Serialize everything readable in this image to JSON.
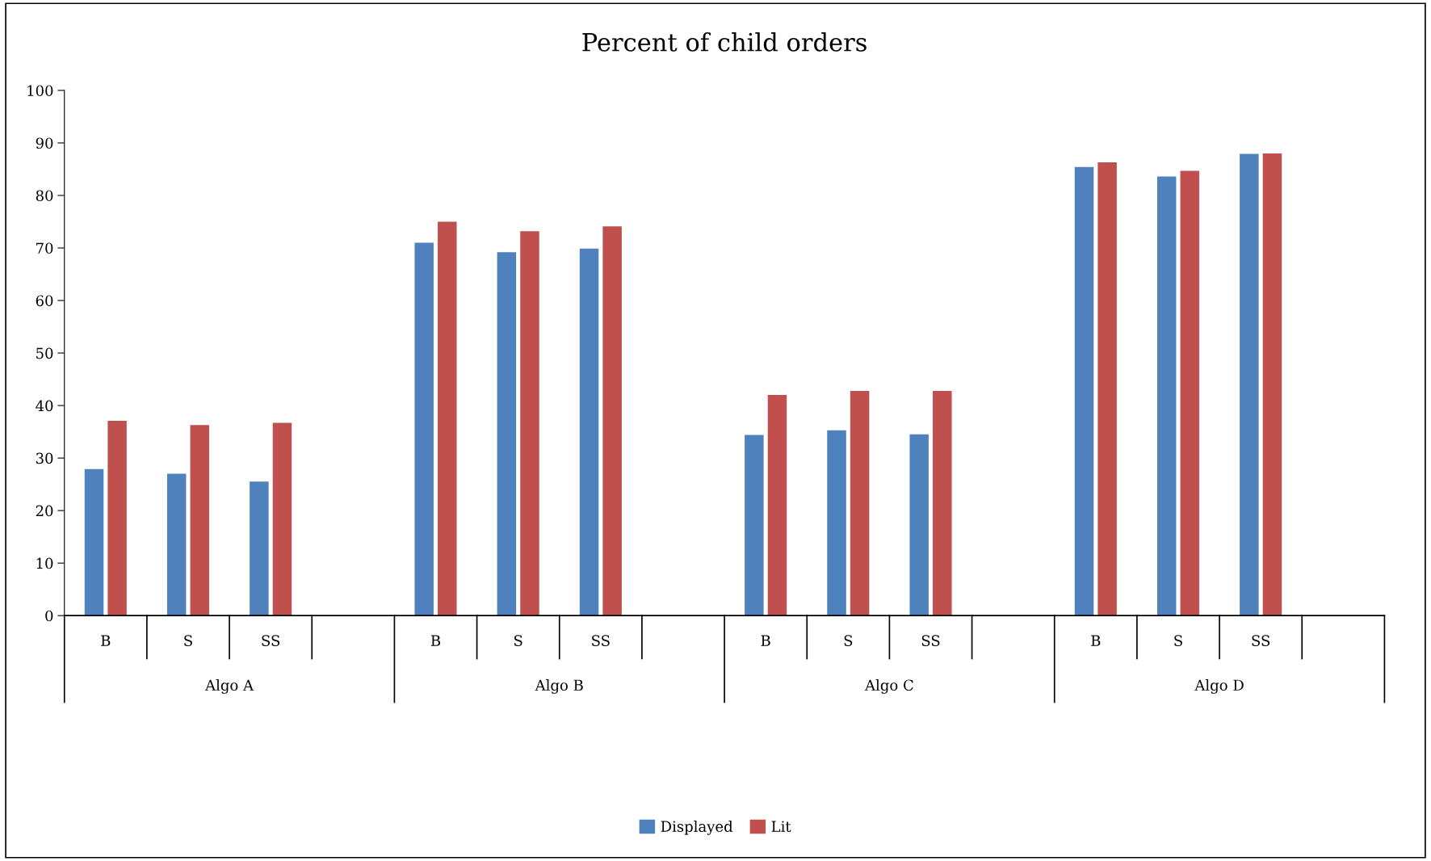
{
  "chart_data": {
    "type": "bar",
    "title": "Percent of child orders",
    "categories": [
      "B",
      "S",
      "SS",
      null,
      "B",
      "S",
      "SS",
      null,
      "B",
      "S",
      "SS",
      null,
      "B",
      "S",
      "SS",
      null
    ],
    "series": [
      {
        "name": "Displayed",
        "color": "#4f81bd",
        "values": [
          27.9,
          27.0,
          25.5,
          null,
          71.0,
          69.2,
          69.9,
          null,
          34.4,
          35.3,
          34.5,
          null,
          85.4,
          83.6,
          87.9,
          null
        ]
      },
      {
        "name": "Lit",
        "color": "#c0504d",
        "values": [
          37.1,
          36.3,
          36.7,
          null,
          75.0,
          73.2,
          74.1,
          null,
          42.0,
          42.8,
          42.8,
          null,
          86.3,
          84.7,
          88.0,
          null
        ]
      }
    ],
    "annotations": [
      "Algo A",
      "Algo B",
      "Algo C",
      "Algo D"
    ],
    "ylim": [
      0,
      100
    ],
    "yticks": [
      0,
      10,
      20,
      30,
      40,
      50,
      60,
      70,
      80,
      90,
      100
    ],
    "grid": false,
    "legend": "bottom"
  }
}
